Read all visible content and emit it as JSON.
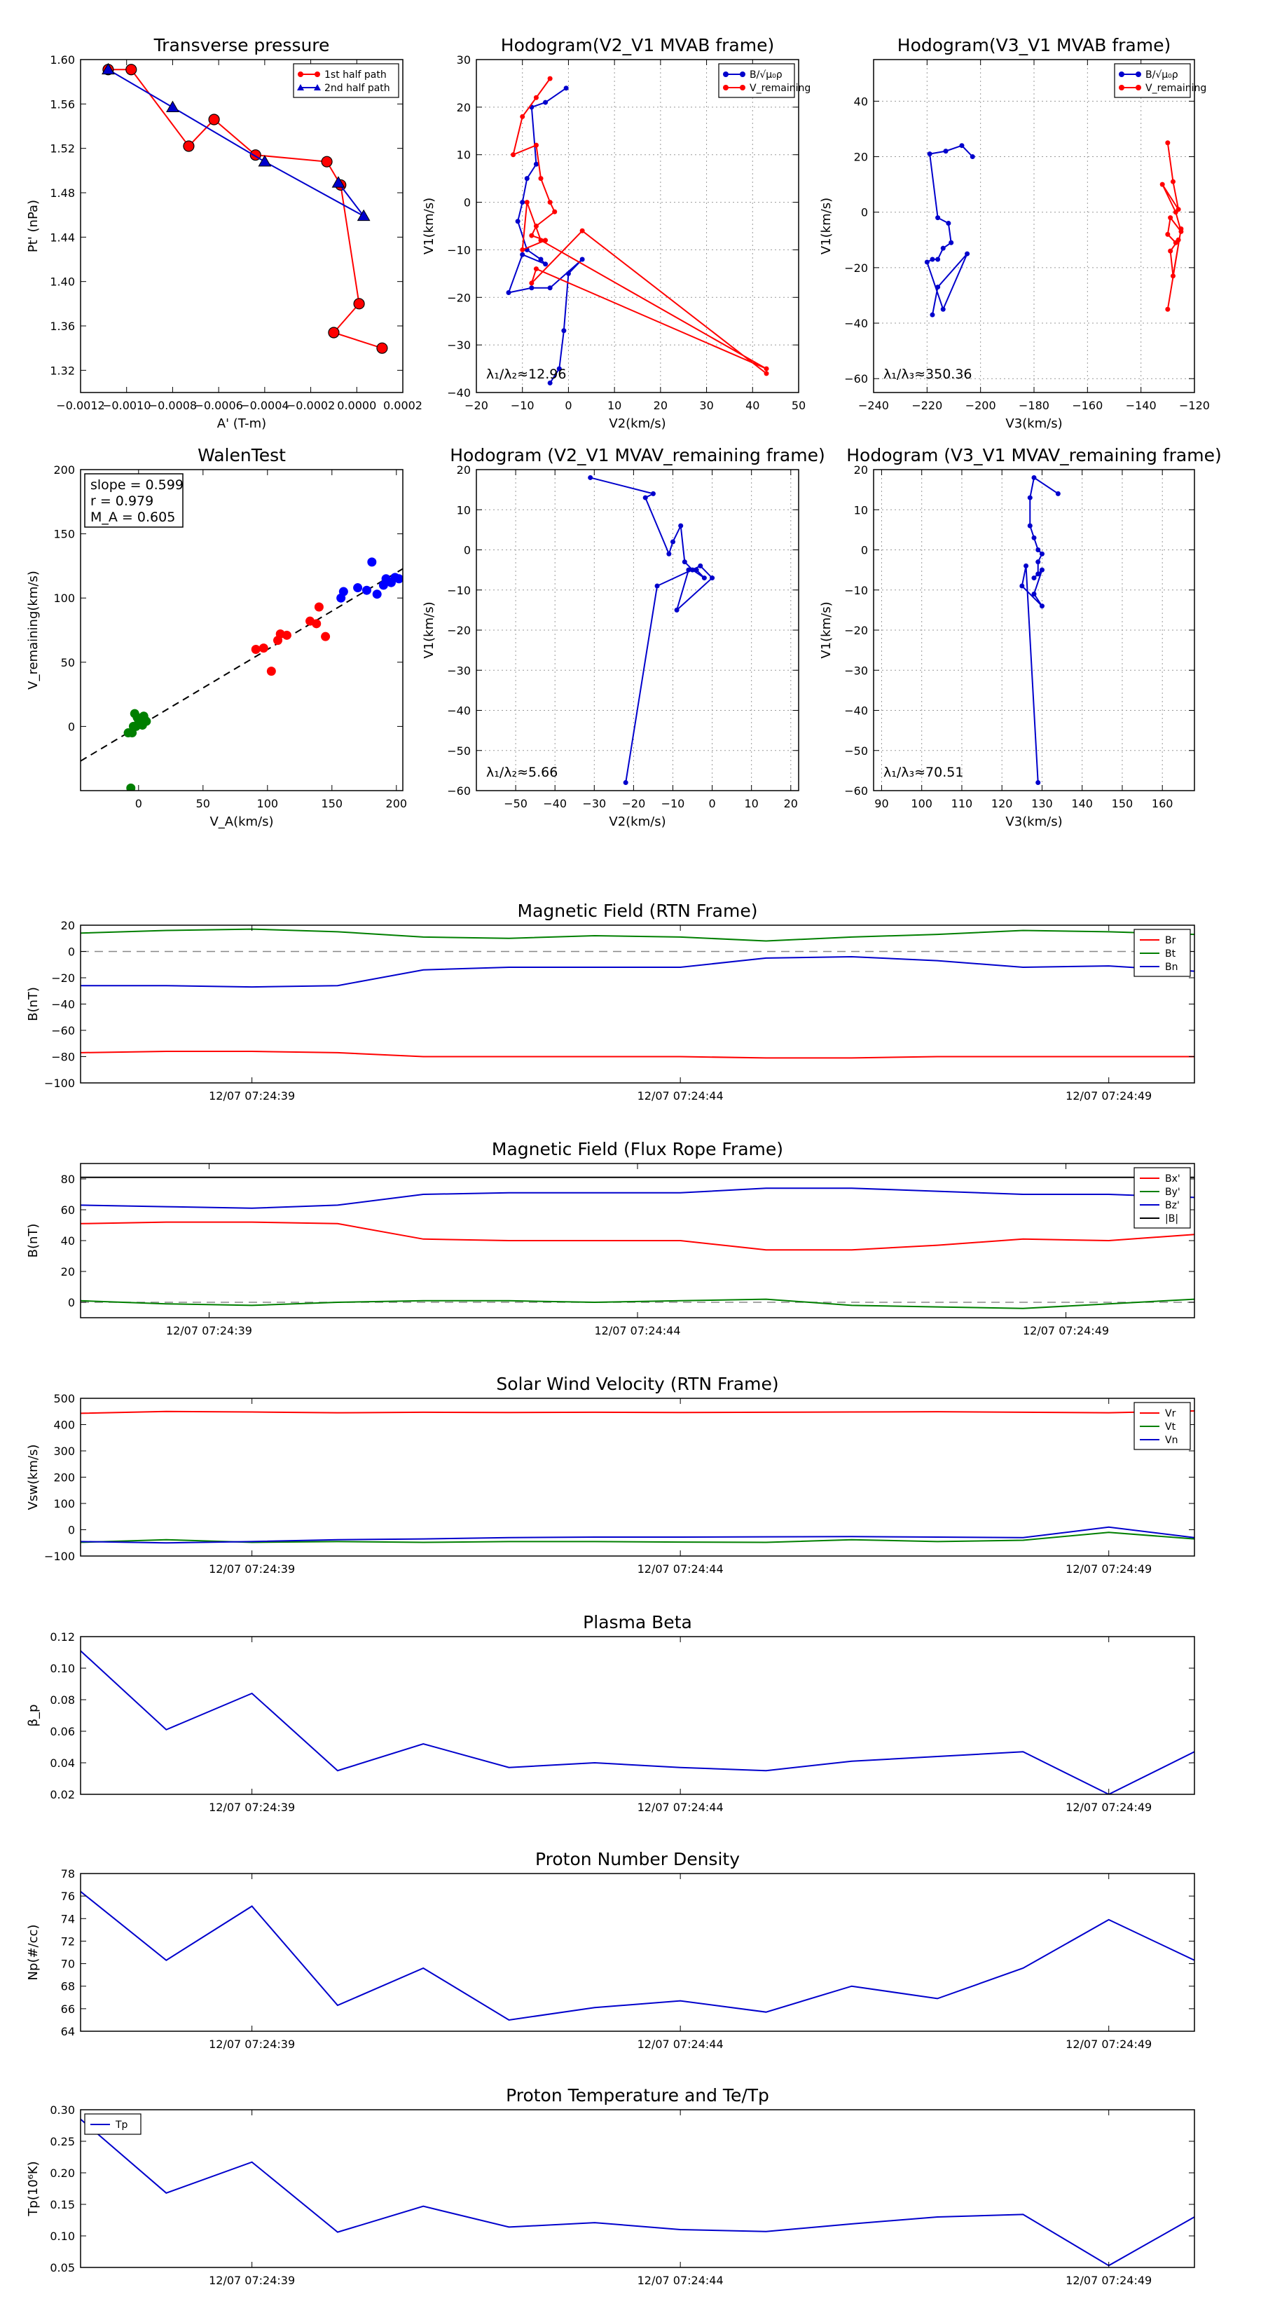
{
  "chart_data": [
    {
      "id": "transverse",
      "type": "line",
      "title": "Transverse pressure",
      "xlabel": "A' (T-m)",
      "ylabel": "Pt' (nPa)",
      "xlim": [
        -0.0012,
        0.0002
      ],
      "ylim": [
        1.3,
        1.6
      ],
      "xticks": [
        "-0.0012",
        "-0.0010",
        "-0.0008",
        "-0.0006",
        "-0.0004",
        "-0.0002",
        "0.0000",
        "0.0002"
      ],
      "yticks": [
        "1.32",
        "1.36",
        "1.40",
        "1.44",
        "1.48",
        "1.52",
        "1.56",
        "1.60"
      ],
      "legend_position": "upper right",
      "grid": false,
      "series": [
        {
          "name": "1st half path",
          "color": "#ff0000",
          "marker": "circle",
          "x": [
            -0.00108,
            -0.00098,
            -0.00073,
            -0.00062,
            -0.00044,
            -0.00013,
            -7e-05,
            1e-05,
            -0.0001,
            0.00011
          ],
          "y": [
            1.591,
            1.591,
            1.522,
            1.546,
            1.514,
            1.508,
            1.487,
            1.38,
            1.354,
            1.34
          ]
        },
        {
          "name": "2nd half path",
          "color": "#0000cc",
          "marker": "triangle",
          "x": [
            -0.00108,
            -0.0008,
            -0.0004,
            3e-05,
            -8e-05
          ],
          "y": [
            1.591,
            1.557,
            1.508,
            1.459,
            1.489
          ]
        }
      ]
    },
    {
      "id": "hodo_v2v1_mvab",
      "type": "line",
      "title": "Hodogram(V2_V1 MVAB frame)",
      "xlabel": "V2(km/s)",
      "ylabel": "V1(km/s)",
      "xlim": [
        -20,
        50
      ],
      "ylim": [
        -40,
        30
      ],
      "xticks": [
        "-20",
        "-10",
        "0",
        "10",
        "20",
        "30",
        "40",
        "50"
      ],
      "yticks": [
        "-40",
        "-30",
        "-20",
        "-10",
        "0",
        "10",
        "20",
        "30"
      ],
      "legend_position": "upper right",
      "grid": true,
      "annotation": "λ₁/λ₂≈12.96",
      "series": [
        {
          "name": "B/√μ₀ρ",
          "color": "#0000cc",
          "x": [
            -0.5,
            -5,
            -8,
            -7,
            -9,
            -10,
            -11,
            -9,
            -6,
            -5,
            -10,
            -13,
            -8,
            -4,
            3,
            0,
            -1,
            -2,
            -4
          ],
          "y": [
            24,
            21,
            20,
            8,
            5,
            0,
            -4,
            -10,
            -12,
            -13,
            -11,
            -19,
            -18,
            -18,
            -12,
            -15,
            -27,
            -35,
            -38
          ]
        },
        {
          "name": "V_remaining",
          "color": "#ff0000",
          "x": [
            -4,
            -7,
            -10,
            -12,
            -7,
            -6,
            -4,
            -3,
            -7,
            -8,
            -5,
            -10,
            -9,
            -6,
            43,
            -7,
            -8,
            3,
            43
          ],
          "y": [
            26,
            22,
            18,
            10,
            12,
            5,
            0,
            -2,
            -5,
            -7,
            -8,
            -10,
            0,
            -8,
            -35,
            -14,
            -17,
            -6,
            -36
          ]
        }
      ]
    },
    {
      "id": "hodo_v3v1_mvab",
      "type": "line",
      "title": "Hodogram(V3_V1 MVAB frame)",
      "xlabel": "V3(km/s)",
      "ylabel": "V1(km/s)",
      "xlim": [
        -240,
        -120
      ],
      "ylim": [
        -65,
        55
      ],
      "xticks": [
        "-240",
        "-220",
        "-200",
        "-180",
        "-160",
        "-140",
        "-120"
      ],
      "yticks": [
        "-60",
        "-40",
        "-20",
        "0",
        "20",
        "40"
      ],
      "legend_position": "upper right",
      "grid": true,
      "annotation": "λ₁/λ₃≈350.36",
      "series": [
        {
          "name": "B/√μ₀ρ",
          "color": "#0000cc",
          "x": [
            -203,
            -207,
            -213,
            -219,
            -216,
            -212,
            -211,
            -214,
            -216,
            -218,
            -220,
            -214,
            -205,
            -216,
            -218
          ],
          "y": [
            20,
            24,
            22,
            21,
            -2,
            -4,
            -11,
            -13,
            -17,
            -17,
            -18,
            -35,
            -15,
            -27,
            -37
          ]
        },
        {
          "name": "V_remaining",
          "color": "#ff0000",
          "x": [
            -130,
            -128,
            -126,
            -132,
            -127,
            -125,
            -129,
            -130,
            -127,
            -126,
            -129,
            -128,
            -125,
            -130
          ],
          "y": [
            25,
            11,
            1,
            10,
            0,
            -7,
            -2,
            -8,
            -11,
            -10,
            -14,
            -23,
            -6,
            -35
          ]
        }
      ]
    },
    {
      "id": "walen",
      "type": "scatter",
      "title": "WalenTest",
      "xlabel": "V_A(km/s)",
      "ylabel": "V_remaining(km/s)",
      "xlim": [
        -45,
        205
      ],
      "ylim": [
        -50,
        200
      ],
      "xticks": [
        "0",
        "50",
        "100",
        "150",
        "200"
      ],
      "yticks": [
        "0",
        "50",
        "100",
        "150",
        "200"
      ],
      "grid": false,
      "stats": [
        "slope = 0.599",
        "r = 0.979",
        "M_A = 0.605"
      ],
      "fit_line": {
        "slope": 0.599,
        "intercept": 0
      },
      "series": [
        {
          "name": "green",
          "color": "#007f00",
          "x": [
            -5,
            -2,
            0,
            2,
            4,
            -3,
            1,
            -8,
            3,
            5,
            -1,
            6,
            -4,
            -6
          ],
          "y": [
            -5,
            0,
            5,
            3,
            8,
            10,
            2,
            -5,
            1,
            5,
            7,
            4,
            0,
            -48
          ]
        },
        {
          "name": "red",
          "color": "#ff0000",
          "x": [
            91,
            97,
            103,
            108,
            110,
            115,
            133,
            138,
            140,
            145
          ],
          "y": [
            60,
            61,
            43,
            67,
            72,
            71,
            82,
            80,
            93,
            70
          ]
        },
        {
          "name": "blue",
          "color": "#0000ff",
          "x": [
            157,
            159,
            170,
            177,
            181,
            185,
            190,
            192,
            196,
            199,
            202
          ],
          "y": [
            100,
            105,
            108,
            106,
            128,
            103,
            110,
            115,
            112,
            116,
            115
          ]
        }
      ]
    },
    {
      "id": "hodo_v2v1_mvav",
      "type": "line",
      "title": "Hodogram (V2_V1 MVAV_remaining frame)",
      "xlabel": "V2(km/s)",
      "ylabel": "V1(km/s)",
      "xlim": [
        -60,
        22
      ],
      "ylim": [
        -60,
        20
      ],
      "xticks": [
        "-50",
        "-40",
        "-30",
        "-20",
        "-10",
        "0",
        "10",
        "20"
      ],
      "yticks": [
        "-60",
        "-50",
        "-40",
        "-30",
        "-20",
        "-10",
        "0",
        "10",
        "20"
      ],
      "grid": true,
      "annotation": "λ₁/λ₂≈5.66",
      "series": [
        {
          "name": "",
          "color": "#0000cc",
          "x": [
            -31,
            -15,
            -17,
            -11,
            -10,
            -8,
            -7,
            -5,
            -2,
            -4,
            -6,
            -9,
            0,
            -3,
            -14,
            -22
          ],
          "y": [
            18,
            14,
            13,
            -1,
            2,
            6,
            -3,
            -5,
            -7,
            -5,
            -5,
            -15,
            -7,
            -4,
            -9,
            -58
          ]
        }
      ]
    },
    {
      "id": "hodo_v3v1_mvav",
      "type": "line",
      "title": "Hodogram (V3_V1 MVAV_remaining frame)",
      "xlabel": "V3(km/s)",
      "ylabel": "V1(km/s)",
      "xlim": [
        88,
        168
      ],
      "ylim": [
        -60,
        20
      ],
      "xticks": [
        "90",
        "100",
        "110",
        "120",
        "130",
        "140",
        "150",
        "160"
      ],
      "yticks": [
        "-60",
        "-50",
        "-40",
        "-30",
        "-20",
        "-10",
        "0",
        "10",
        "20"
      ],
      "grid": true,
      "annotation": "λ₁/λ₃≈70.51",
      "series": [
        {
          "name": "",
          "color": "#0000cc",
          "x": [
            134,
            128,
            127,
            127,
            128,
            129,
            130,
            129,
            129,
            128,
            130,
            128,
            130,
            125,
            126,
            129
          ],
          "y": [
            14,
            18,
            13,
            6,
            3,
            0,
            -1,
            -3,
            -6,
            -7,
            -5,
            -11,
            -14,
            -9,
            -4,
            -58
          ]
        }
      ]
    },
    {
      "id": "bfield_rtn",
      "type": "line",
      "title": "Magnetic Field (RTN Frame)",
      "ylabel": "B(nT)",
      "xlim": [
        0,
        13
      ],
      "ylim": [
        -100,
        20
      ],
      "xticks_pos": [
        2,
        7,
        12
      ],
      "xticks": [
        "12/07 07:24:39",
        "12/07 07:24:44",
        "12/07 07:24:49"
      ],
      "yticks": [
        "-100",
        "-80",
        "-60",
        "-40",
        "-20",
        "0",
        "20"
      ],
      "legend_position": "upper right",
      "zero_line": true,
      "x": [
        0,
        1,
        2,
        3,
        4,
        5,
        6,
        7,
        8,
        9,
        10,
        11,
        12,
        13
      ],
      "series": [
        {
          "name": "Br",
          "color": "#ff0000",
          "values": [
            -77,
            -76,
            -76,
            -77,
            -80,
            -80,
            -80,
            -80,
            -81,
            -81,
            -80,
            -80,
            -80,
            -80
          ]
        },
        {
          "name": "Bt",
          "color": "#007f00",
          "values": [
            14,
            16,
            17,
            15,
            11,
            10,
            12,
            11,
            8,
            11,
            13,
            16,
            15,
            13
          ]
        },
        {
          "name": "Bn",
          "color": "#0000cc",
          "values": [
            -26,
            -26,
            -27,
            -26,
            -14,
            -12,
            -12,
            -12,
            -5,
            -4,
            -7,
            -12,
            -11,
            -15
          ]
        }
      ]
    },
    {
      "id": "bfield_fr",
      "type": "line",
      "title": "Magnetic Field (Flux Rope Frame)",
      "ylabel": "B(nT)",
      "xlim": [
        0,
        13
      ],
      "ylim": [
        -10,
        90
      ],
      "xticks_pos": [
        1.5,
        6.5,
        11.5
      ],
      "xticks": [
        "12/07 07:24:39",
        "12/07 07:24:44",
        "12/07 07:24:49"
      ],
      "yticks": [
        "0",
        "20",
        "40",
        "60",
        "80"
      ],
      "legend_position": "upper right",
      "zero_line": true,
      "x": [
        0,
        1,
        2,
        3,
        4,
        5,
        6,
        7,
        8,
        9,
        10,
        11,
        12,
        13
      ],
      "series": [
        {
          "name": "Bx'",
          "color": "#ff0000",
          "values": [
            51,
            52,
            52,
            51,
            41,
            40,
            40,
            40,
            34,
            34,
            37,
            41,
            40,
            44
          ]
        },
        {
          "name": "By'",
          "color": "#007f00",
          "values": [
            1,
            -1,
            -2,
            0,
            1,
            1,
            0,
            1,
            2,
            -2,
            -3,
            -4,
            -1,
            2
          ]
        },
        {
          "name": "Bz'",
          "color": "#0000cc",
          "values": [
            63,
            62,
            61,
            63,
            70,
            71,
            71,
            71,
            74,
            74,
            72,
            70,
            70,
            68
          ]
        },
        {
          "name": "|B|",
          "color": "#000000",
          "values": [
            81,
            81,
            81,
            81,
            81,
            81,
            81,
            81,
            81,
            81,
            81,
            81,
            81,
            81
          ]
        }
      ]
    },
    {
      "id": "vsw",
      "type": "line",
      "title": "Solar Wind Velocity (RTN Frame)",
      "ylabel": "Vsw(km/s)",
      "xlim": [
        0,
        13
      ],
      "ylim": [
        -100,
        500
      ],
      "xticks_pos": [
        2,
        7,
        12
      ],
      "xticks": [
        "12/07 07:24:39",
        "12/07 07:24:44",
        "12/07 07:24:49"
      ],
      "yticks": [
        "-100",
        "0",
        "100",
        "200",
        "300",
        "400",
        "500"
      ],
      "legend_position": "upper right",
      "x": [
        0,
        1,
        2,
        3,
        4,
        5,
        6,
        7,
        8,
        9,
        10,
        11,
        12,
        13
      ],
      "series": [
        {
          "name": "Vr",
          "color": "#ff0000",
          "values": [
            443,
            450,
            448,
            445,
            447,
            446,
            447,
            446,
            447,
            448,
            449,
            447,
            445,
            452
          ]
        },
        {
          "name": "Vt",
          "color": "#007f00",
          "values": [
            -48,
            -38,
            -48,
            -45,
            -48,
            -45,
            -45,
            -47,
            -48,
            -38,
            -45,
            -40,
            -10,
            -35
          ]
        },
        {
          "name": "Vn",
          "color": "#0000cc",
          "values": [
            -45,
            -50,
            -45,
            -38,
            -35,
            -30,
            -28,
            -28,
            -27,
            -26,
            -28,
            -30,
            10,
            -30
          ]
        }
      ]
    },
    {
      "id": "beta",
      "type": "line",
      "title": "Plasma Beta",
      "ylabel": "β_p",
      "xlim": [
        0,
        13
      ],
      "ylim": [
        0.02,
        0.12
      ],
      "xticks_pos": [
        2,
        7,
        12
      ],
      "xticks": [
        "12/07 07:24:39",
        "12/07 07:24:44",
        "12/07 07:24:49"
      ],
      "yticks": [
        "0.02",
        "0.04",
        "0.06",
        "0.08",
        "0.10",
        "0.12"
      ],
      "x": [
        0,
        1,
        2,
        3,
        4,
        5,
        6,
        7,
        8,
        9,
        10,
        11,
        12,
        13
      ],
      "series": [
        {
          "name": "",
          "color": "#0000cc",
          "values": [
            0.111,
            0.061,
            0.084,
            0.035,
            0.052,
            0.037,
            0.04,
            0.037,
            0.035,
            0.041,
            0.044,
            0.047,
            0.02,
            0.047
          ]
        }
      ]
    },
    {
      "id": "density",
      "type": "line",
      "title": "Proton Number Density",
      "ylabel": "Np(#/cc)",
      "xlim": [
        0,
        13
      ],
      "ylim": [
        64,
        78
      ],
      "xticks_pos": [
        2,
        7,
        12
      ],
      "xticks": [
        "12/07 07:24:39",
        "12/07 07:24:44",
        "12/07 07:24:49"
      ],
      "yticks": [
        "64",
        "66",
        "68",
        "70",
        "72",
        "74",
        "76",
        "78"
      ],
      "x": [
        0,
        1,
        2,
        3,
        4,
        5,
        6,
        7,
        8,
        9,
        10,
        11,
        12,
        13
      ],
      "series": [
        {
          "name": "",
          "color": "#0000cc",
          "values": [
            76.4,
            70.3,
            75.1,
            66.3,
            69.6,
            65.0,
            66.1,
            66.7,
            65.7,
            68.0,
            66.9,
            69.6,
            73.9,
            70.3
          ]
        }
      ]
    },
    {
      "id": "temperature",
      "type": "line",
      "title": "Proton Temperature and Te/Tp",
      "ylabel": "Tp(10⁶K)",
      "xlim": [
        0,
        13
      ],
      "ylim": [
        0.05,
        0.3
      ],
      "xticks_pos": [
        2,
        7,
        12
      ],
      "xticks": [
        "12/07 07:24:39",
        "12/07 07:24:44",
        "12/07 07:24:49"
      ],
      "yticks": [
        "0.05",
        "0.10",
        "0.15",
        "0.20",
        "0.25",
        "0.30"
      ],
      "legend_position": "upper left",
      "x": [
        0,
        1,
        2,
        3,
        4,
        5,
        6,
        7,
        8,
        9,
        10,
        11,
        12,
        13
      ],
      "series": [
        {
          "name": "Tp",
          "color": "#0000cc",
          "values": [
            0.285,
            0.168,
            0.217,
            0.106,
            0.147,
            0.114,
            0.121,
            0.11,
            0.107,
            0.119,
            0.13,
            0.134,
            0.053,
            0.13
          ]
        }
      ]
    }
  ]
}
